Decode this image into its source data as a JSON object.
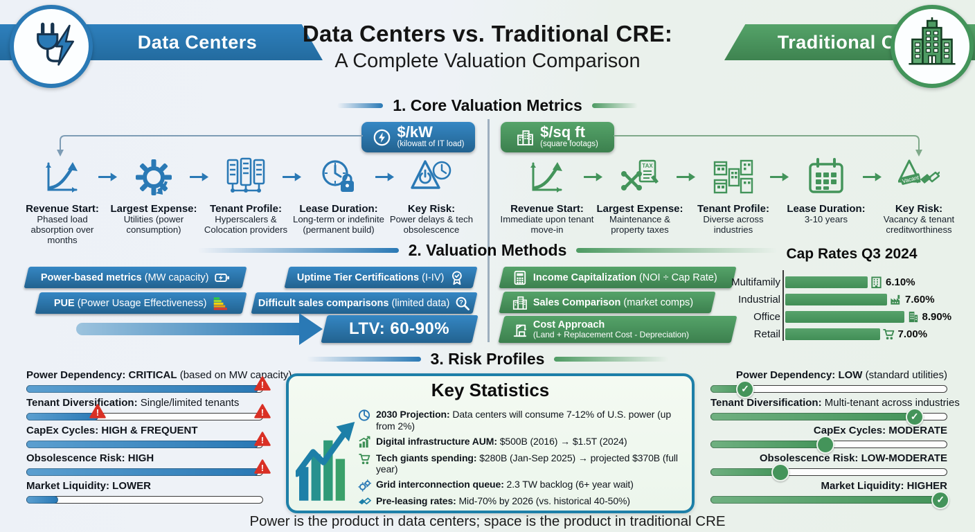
{
  "colors": {
    "blue": "#2A79B5",
    "green": "#4E9B63",
    "red": "#D93025",
    "teal": "#1D7FA8"
  },
  "header": {
    "left_banner": "Data Centers",
    "title_line1": "Data Centers vs. Traditional CRE:",
    "title_line2": "A Complete Valuation Comparison",
    "right_banner": "Traditional CRE"
  },
  "sections": {
    "s1": "1. Core Valuation Metrics",
    "s2": "2. Valuation Methods",
    "s3": "3. Risk Profiles"
  },
  "badges": {
    "kw": {
      "label": "$/kW",
      "sub": "(kilowatt of IT load)",
      "icon": "lightning-circle"
    },
    "sqft": {
      "label": "$/sq ft",
      "sub": "(square footags)",
      "icon": "building"
    }
  },
  "dc_flow": [
    {
      "icon": "growth-curve",
      "title": "Revenue Start:",
      "desc": "Phased load absorption over months"
    },
    {
      "icon": "gear",
      "title": "Largest Expense:",
      "desc": "Utilities (power consumption)"
    },
    {
      "icon": "server-racks",
      "title": "Tenant Profile:",
      "desc": "Hyperscalers & Colocation providers"
    },
    {
      "icon": "clock-lock",
      "title": "Lease Duration:",
      "desc": "Long-term or indefinite (permanent build)"
    },
    {
      "icon": "power-warning",
      "title": "Key Risk:",
      "desc": "Power delays & tech obsolescence"
    }
  ],
  "cre_flow": [
    {
      "icon": "growth-curve",
      "title": "Revenue Start:",
      "desc": "Immediate upon tenant move-in"
    },
    {
      "icon": "tools-tax",
      "title": "Largest Expense:",
      "desc": "Maintenance & property taxes"
    },
    {
      "icon": "buildings",
      "title": "Tenant Profile:",
      "desc": "Diverse across industries"
    },
    {
      "icon": "calendar",
      "title": "Lease Duration:",
      "desc": "3-10 years"
    },
    {
      "icon": "vacancy-handshake",
      "title": "Key Risk:",
      "desc": "Vacancy & tenant creditworthiness"
    }
  ],
  "dc_methods": [
    {
      "bold": "Power-based metrics",
      "rest": " (MW capacity)",
      "icon": "battery"
    },
    {
      "bold": "Uptime Tier Certifications",
      "rest": " (I-IV)",
      "icon": "certification-rosette"
    },
    {
      "bold": "PUE",
      "rest": " (Power Usage Effectiveness)",
      "icon": "efficiency-scale"
    },
    {
      "bold": "Difficult sales comparisons",
      "rest": " (limited data)",
      "icon": "magnifier-question"
    }
  ],
  "ltv_label": "LTV: 60-90%",
  "cre_methods": [
    {
      "bold": "Income Capitalization",
      "rest": " (NOI ÷ Cap Rate)",
      "sub": "",
      "icon": "calculator"
    },
    {
      "bold": "Sales Comparison",
      "rest": " (market comps)",
      "sub": "",
      "icon": "city-buildings"
    },
    {
      "bold": "Cost Approach",
      "rest": "",
      "sub": "(Land + Replacement Cost - Depreciation)",
      "icon": "crane"
    }
  ],
  "chart_data": {
    "type": "bar",
    "orientation": "horizontal",
    "title": "Cap Rates Q3 2024",
    "categories": [
      "Multifamily",
      "Industrial",
      "Office",
      "Retail"
    ],
    "values": [
      6.1,
      7.6,
      8.9,
      7.0
    ],
    "value_labels": [
      "6.10%",
      "7.60%",
      "8.90%",
      "7.00%"
    ],
    "icons": [
      "apartment",
      "factory",
      "office-building",
      "shopping-cart"
    ],
    "xlim": [
      0,
      9.5
    ],
    "legend": "none",
    "bar_pct": [
      34,
      42,
      49,
      39
    ]
  },
  "dc_risks": [
    {
      "bold": "Power Dependency: CRITICAL",
      "rest": " (based on MW capacity)",
      "fill": 98
    },
    {
      "bold": "Tenant Diversification:",
      "rest": " Single/limited tenants",
      "fill": 30
    },
    {
      "bold": "CapEx Cycles: HIGH & FREQUENT",
      "rest": "",
      "fill": 98
    },
    {
      "bold": "Obsolescence Risk: HIGH",
      "rest": "",
      "fill": 98
    },
    {
      "bold": "Market Liquidity: LOWER",
      "rest": "",
      "fill": 13
    }
  ],
  "cre_risks": [
    {
      "bold": "Power Dependency: LOW",
      "rest": " (standard utilities)",
      "fill": 15,
      "knob": "check"
    },
    {
      "bold": "Tenant Diversification:",
      "rest": " Multi-tenant across industries",
      "fill": 87,
      "knob": "check"
    },
    {
      "bold": "CapEx Cycles: MODERATE",
      "rest": "",
      "fill": 49,
      "knob": "plain"
    },
    {
      "bold": "Obsolescence Risk: LOW-MODERATE",
      "rest": "",
      "fill": 30,
      "knob": "plain"
    },
    {
      "bold": "Market Liquidity: HIGHER",
      "rest": "",
      "fill": 98,
      "knob": "check"
    }
  ],
  "key_stats": {
    "title": "Key Statistics",
    "items": [
      {
        "icon": "pie-chart",
        "bold": "2030 Projection:",
        "rest": " Data centers will consume 7-12% of U.S. power (up from 2%)"
      },
      {
        "icon": "growth-bars",
        "bold": "Digital infrastructure AUM:",
        "rest": " $500B (2016) → $1.5T (2024)"
      },
      {
        "icon": "shopping-cart",
        "bold": "Tech giants spending:",
        "rest": " $280B (Jan-Sep 2025) → projected $370B (full year)"
      },
      {
        "icon": "grid-gears",
        "bold": "Grid interconnection queue:",
        "rest": " 2.3 TW backlog (6+ year wait)"
      },
      {
        "icon": "handshake",
        "bold": "Pre-leasing rates:",
        "rest": " Mid-70% by 2026 (vs. historical 40-50%)"
      }
    ]
  },
  "footer": "Power is the product in data centers; space is the product in traditional CRE"
}
